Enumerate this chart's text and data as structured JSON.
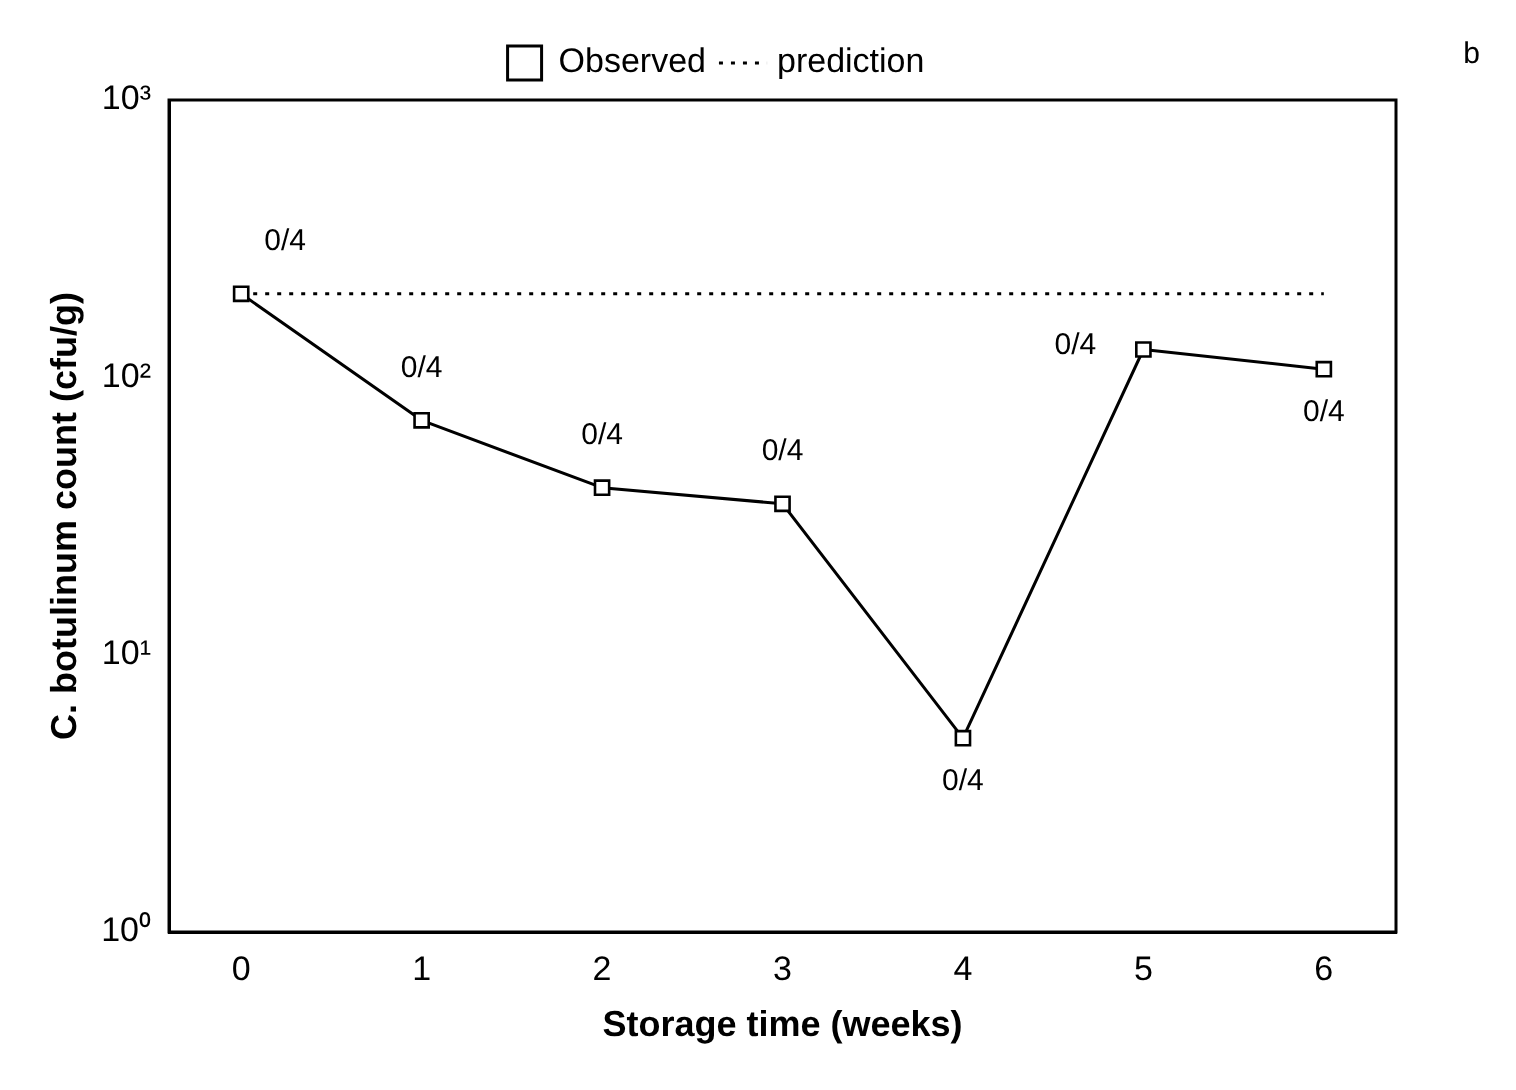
{
  "chart_data": {
    "type": "line",
    "xlabel": "Storage time (weeks)",
    "ylabel": "C. botulinum count (cfu/g)",
    "series": [
      {
        "name": "Observed",
        "color": "#000000",
        "x": [
          0,
          1,
          2,
          3,
          4,
          5,
          6
        ],
        "values": [
          200,
          70,
          40,
          35,
          5,
          126,
          107
        ],
        "marker": "square",
        "line_style": "solid"
      },
      {
        "name": "prediction",
        "color": "#000000",
        "x": [
          0,
          6
        ],
        "values": [
          200,
          200
        ],
        "marker": "none",
        "line_style": "dotted"
      }
    ],
    "xlim": [
      -0.4,
      6.4
    ],
    "xticks": [
      0,
      1,
      2,
      3,
      4,
      5,
      6
    ],
    "log": "y",
    "ylim": [
      1,
      1000
    ],
    "yticks": [
      {
        "value": 1,
        "label": "10⁰"
      },
      {
        "value": 10,
        "label": "10¹"
      },
      {
        "value": 100,
        "label": "10²"
      },
      {
        "value": 1000,
        "label": "10³"
      }
    ],
    "grid": false,
    "legend": "top",
    "annotations": [
      "b",
      {
        "text": "0/4",
        "x": 0,
        "y": 200
      },
      {
        "text": "0/4",
        "x": 1,
        "y": 70
      },
      {
        "text": "0/4",
        "x": 2,
        "y": 40
      },
      {
        "text": "0/4",
        "x": 3,
        "y": 35
      },
      {
        "text": "0/4",
        "x": 4,
        "y": 5
      },
      {
        "text": "0/4",
        "x": 5,
        "y": 126
      },
      {
        "text": "0/4",
        "x": 6,
        "y": 107
      }
    ]
  }
}
